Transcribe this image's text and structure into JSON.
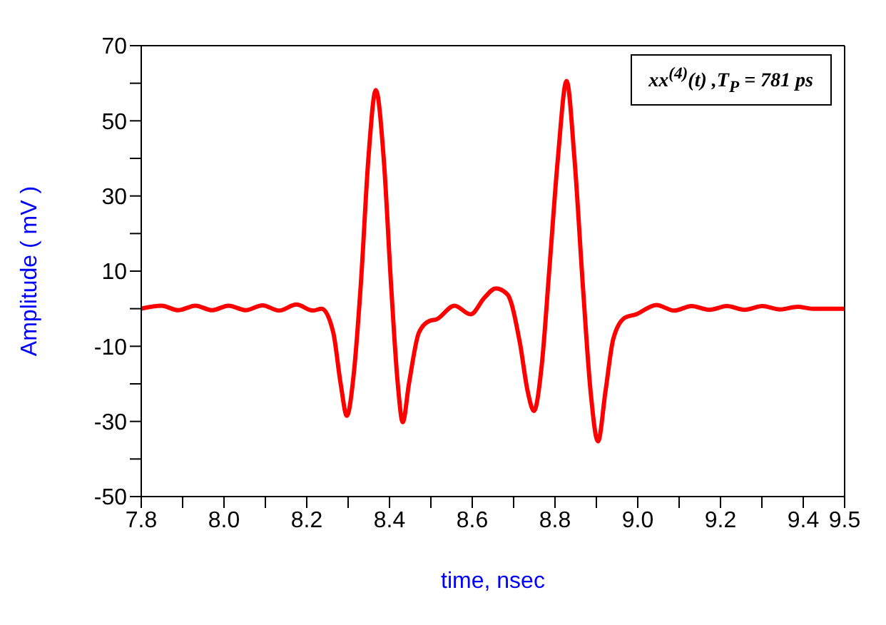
{
  "chart_data": {
    "type": "line",
    "xlabel": "time, nsec",
    "ylabel": "Amplitude ( mV )",
    "annotations": [
      "xx$^{(4)}$(t) ,T$_{P}$ = 781 ps"
    ],
    "xlim": [
      7.8,
      9.5
    ],
    "xticks": [
      7.8,
      {
        "value": 7.9,
        "label": null
      },
      "8.0",
      {
        "value": 8.1,
        "label": null
      },
      8.2,
      {
        "value": 8.3,
        "label": null
      },
      8.4,
      {
        "value": 8.5,
        "label": null
      },
      8.6,
      {
        "value": 8.7,
        "label": null
      },
      8.8,
      {
        "value": 8.9,
        "label": null
      },
      "9.0",
      {
        "value": 9.1,
        "label": null
      },
      9.2,
      {
        "value": 9.3,
        "label": null
      },
      9.4,
      9.5
    ],
    "ylim": [
      -50,
      70
    ],
    "yticks": [
      -50,
      {
        "value": -40,
        "label": null
      },
      -30,
      {
        "value": -20,
        "label": null
      },
      -10,
      {
        "value": 0,
        "label": null
      },
      10,
      {
        "value": 20,
        "label": null
      },
      30,
      {
        "value": 40,
        "label": null
      },
      50,
      {
        "value": 60,
        "label": null
      },
      70
    ],
    "grid": false,
    "legend": false,
    "marker": "none",
    "line_style": "solid",
    "series": [
      {
        "color": "#ff0000",
        "x": [
          7.8,
          7.849,
          7.889,
          7.931,
          7.971,
          8.011,
          8.053,
          8.093,
          8.133,
          8.175,
          8.215,
          8.236,
          8.264,
          8.282,
          8.297,
          8.313,
          8.331,
          8.349,
          8.367,
          8.386,
          8.404,
          8.42,
          8.432,
          8.447,
          8.471,
          8.496,
          8.514,
          8.557,
          8.596,
          8.63,
          8.657,
          8.685,
          8.715,
          8.734,
          8.749,
          8.768,
          8.786,
          8.807,
          8.828,
          8.847,
          8.868,
          8.886,
          8.904,
          8.922,
          8.941,
          8.969,
          8.996,
          9.045,
          9.088,
          9.13,
          9.173,
          9.216,
          9.258,
          9.301,
          9.344,
          9.386,
          9.423,
          9.5
        ],
        "values": [
          0,
          0.8,
          -0.4,
          0.8,
          -0.4,
          0.8,
          -0.4,
          0.9,
          -0.5,
          1.1,
          -0.5,
          0,
          -6.3,
          -20,
          -28.5,
          -18,
          7,
          40,
          58.2,
          40,
          6,
          -20,
          -30.2,
          -20,
          -6.4,
          -3.3,
          -2.8,
          0.8,
          -1.5,
          3,
          5.4,
          3.8,
          -9,
          -22,
          -27.2,
          -15,
          10,
          40,
          60.6,
          40,
          5,
          -22,
          -35.3,
          -22,
          -8,
          -2.4,
          -1.5,
          1,
          -0.5,
          0.7,
          -0.3,
          0.7,
          -0.3,
          0.7,
          -0.2,
          0.5,
          0,
          0
        ]
      }
    ]
  }
}
